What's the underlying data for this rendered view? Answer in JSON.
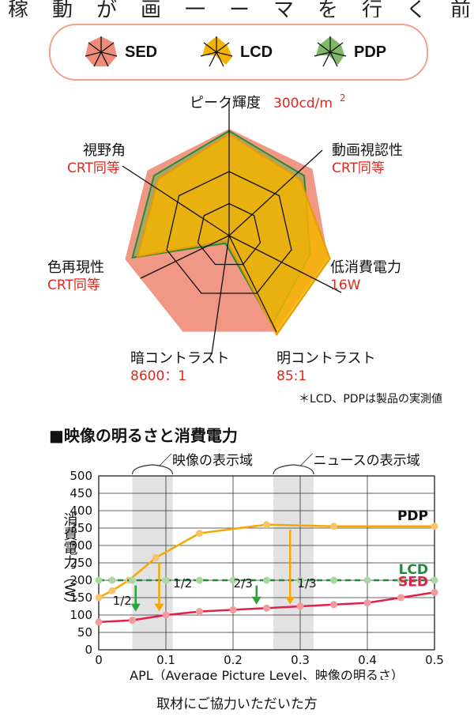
{
  "header_cut": "稼動が画一ーマを行く前",
  "legend": [
    {
      "name": "SED",
      "color": "#ee8c78"
    },
    {
      "name": "LCD",
      "color": "#f5b400"
    },
    {
      "name": "PDP",
      "color": "#6fae5c"
    }
  ],
  "chart_data": [
    {
      "type": "radar",
      "axes": [
        {
          "label": "ピーク輝度",
          "value_text": "300cd/m",
          "sup": "2"
        },
        {
          "label": "動画視認性",
          "value_text": "CRT同等"
        },
        {
          "label": "低消費電力",
          "value_text": "16W"
        },
        {
          "label": "明コントラスト",
          "value_text": "85:1"
        },
        {
          "label": "暗コントラスト",
          "value_text": "8600：1"
        },
        {
          "label": "色再現性",
          "value_text": "CRT同等"
        },
        {
          "label": "視野角",
          "value_text": "CRT同等"
        }
      ],
      "series": [
        {
          "name": "SED",
          "values": [
            1.0,
            1.0,
            0.95,
            1.0,
            1.0,
            1.0,
            0.98
          ]
        },
        {
          "name": "PDP",
          "values": [
            0.98,
            0.9,
            0.78,
            0.93,
            0.08,
            0.93,
            0.9
          ]
        },
        {
          "name": "LCD",
          "values": [
            0.95,
            0.85,
            0.97,
            1.03,
            0.05,
            0.88,
            0.85
          ]
        }
      ],
      "range": [
        0,
        1
      ]
    },
    {
      "type": "line",
      "title": "■映像の明るさと消費電力",
      "xlabel": "APL（Average Picture Level、映像の明るさ）",
      "ylabel": "消費電力（W）",
      "xlim": [
        0,
        0.5
      ],
      "ylim": [
        0,
        500
      ],
      "x_ticks": [
        "0",
        "0.1",
        "0.2",
        "0.3",
        "0.4",
        "0.5"
      ],
      "y_ticks": [
        "0",
        "50",
        "100",
        "150",
        "200",
        "250",
        "300",
        "350",
        "400",
        "450",
        "500"
      ],
      "grid": true,
      "series": [
        {
          "name": "PDP",
          "x": [
            0,
            0.02,
            0.045,
            0.085,
            0.15,
            0.25,
            0.35,
            0.5
          ],
          "y": [
            150,
            170,
            200,
            265,
            335,
            360,
            355,
            355
          ]
        },
        {
          "name": "LCD",
          "x": [
            0,
            0.02,
            0.05,
            0.1,
            0.15,
            0.2,
            0.25,
            0.3,
            0.35,
            0.4,
            0.45,
            0.5
          ],
          "y": [
            200,
            200,
            200,
            200,
            200,
            200,
            200,
            200,
            200,
            200,
            200,
            200
          ]
        },
        {
          "name": "SED",
          "x": [
            0,
            0.05,
            0.1,
            0.15,
            0.2,
            0.25,
            0.3,
            0.35,
            0.4,
            0.45,
            0.5
          ],
          "y": [
            80,
            85,
            100,
            110,
            115,
            120,
            125,
            130,
            135,
            150,
            165
          ]
        }
      ],
      "regions": [
        {
          "label": "映像の表示域",
          "x0": 0.05,
          "x1": 0.11
        },
        {
          "label": "ニュースの表示域",
          "x0": 0.26,
          "x1": 0.32
        }
      ],
      "arrows": [
        {
          "from_series": "LCD",
          "x": 0.055,
          "y_from": 185,
          "y_to": 110,
          "color": "#2aa33a"
        },
        {
          "from_series": "PDP",
          "x": 0.09,
          "y_from": 250,
          "y_to": 110,
          "color": "#f5a800"
        },
        {
          "from_series": "LCD",
          "x": 0.235,
          "y_from": 185,
          "y_to": 130,
          "color": "#2aa33a"
        },
        {
          "from_series": "PDP",
          "x": 0.285,
          "y_from": 345,
          "y_to": 130,
          "color": "#f5a800"
        }
      ],
      "annotations": [
        {
          "text": "1/2",
          "x": 0.035,
          "y": 130
        },
        {
          "text": "1/2",
          "x": 0.125,
          "y": 180
        },
        {
          "text": "2/3",
          "x": 0.215,
          "y": 180
        },
        {
          "text": "1/3",
          "x": 0.31,
          "y": 180
        }
      ]
    }
  ],
  "note": "＊LCD、PDPは製品の実測値",
  "footer_cut": "取材にご協力いただいた方"
}
